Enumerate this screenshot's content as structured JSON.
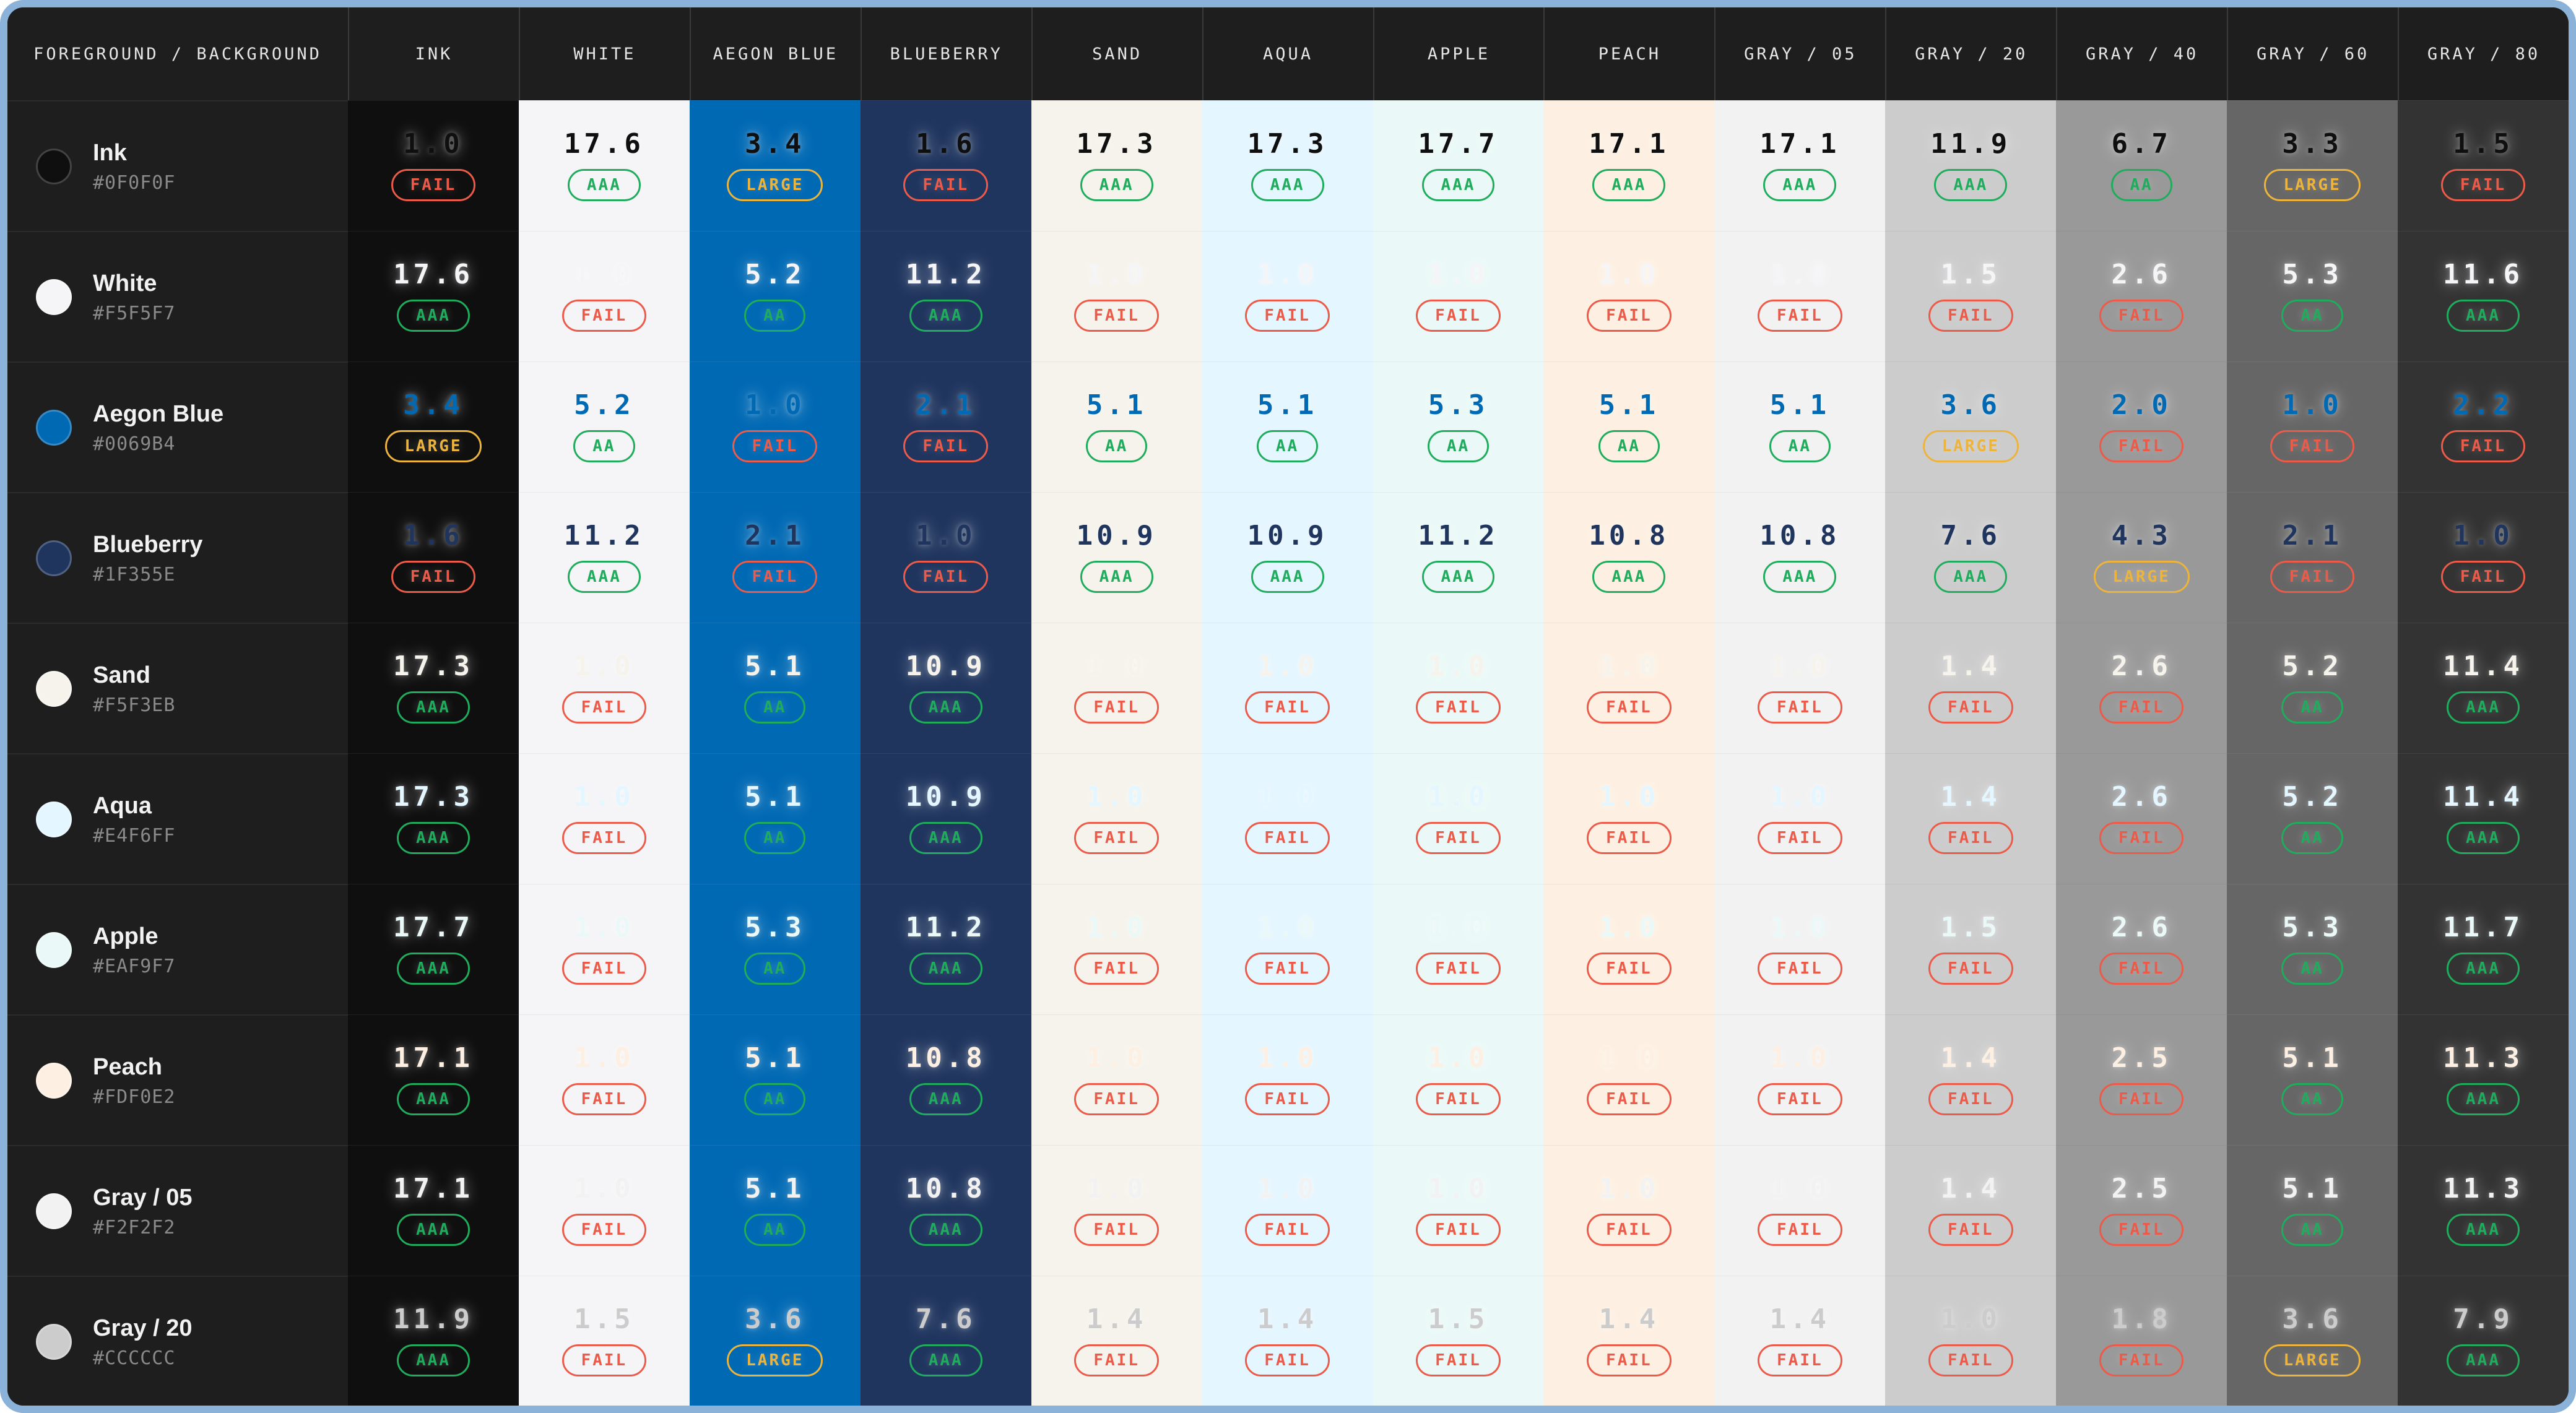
{
  "frame": {
    "border_color": "#8BB2D9",
    "page_background": "#FFFFFF",
    "table_background": "#1E1E1E",
    "header_background": "#1E1E1E",
    "header_text_color": "#E6E6E6",
    "header_divider_color": "#3A3A3A",
    "row_label_background": "#1E1E1E",
    "row_name_color": "#F2F2F2",
    "row_hex_color": "#8A8A8A"
  },
  "badge_colors": {
    "AAA": "#1FAC5C",
    "AA": "#1FAC5C",
    "LARGE": "#ECB43D",
    "FAIL": "#EC5B49"
  },
  "header": {
    "corner_label": "FOREGROUND / BACKGROUND",
    "columns": [
      {
        "key": "ink",
        "label": "INK",
        "bg": "#0F0F0F",
        "dark": true
      },
      {
        "key": "white",
        "label": "WHITE",
        "bg": "#F5F5F7",
        "dark": false
      },
      {
        "key": "aegonblue",
        "label": "AEGON BLUE",
        "bg": "#0069B4",
        "dark": true
      },
      {
        "key": "blueberry",
        "label": "BLUEBERRY",
        "bg": "#1F355E",
        "dark": true
      },
      {
        "key": "sand",
        "label": "SAND",
        "bg": "#F5F3EB",
        "dark": false
      },
      {
        "key": "aqua",
        "label": "AQUA",
        "bg": "#E4F6FF",
        "dark": false
      },
      {
        "key": "apple",
        "label": "APPLE",
        "bg": "#EAF9F7",
        "dark": false
      },
      {
        "key": "peach",
        "label": "PEACH",
        "bg": "#FDF0E2",
        "dark": false
      },
      {
        "key": "gray05",
        "label": "GRAY / 05",
        "bg": "#F2F2F2",
        "dark": false
      },
      {
        "key": "gray20",
        "label": "GRAY / 20",
        "bg": "#CCCCCC",
        "dark": false
      },
      {
        "key": "gray40",
        "label": "GRAY / 40",
        "bg": "#999999",
        "dark": false
      },
      {
        "key": "gray60",
        "label": "GRAY / 60",
        "bg": "#666666",
        "dark": true
      },
      {
        "key": "gray80",
        "label": "GRAY / 80",
        "bg": "#333333",
        "dark": true
      }
    ]
  },
  "rows": [
    {
      "key": "ink",
      "name": "Ink",
      "hex": "#0F0F0F",
      "cells": [
        {
          "ratio": "1.0",
          "grade": "FAIL"
        },
        {
          "ratio": "17.6",
          "grade": "AAA"
        },
        {
          "ratio": "3.4",
          "grade": "LARGE"
        },
        {
          "ratio": "1.6",
          "grade": "FAIL"
        },
        {
          "ratio": "17.3",
          "grade": "AAA"
        },
        {
          "ratio": "17.3",
          "grade": "AAA"
        },
        {
          "ratio": "17.7",
          "grade": "AAA"
        },
        {
          "ratio": "17.1",
          "grade": "AAA"
        },
        {
          "ratio": "17.1",
          "grade": "AAA"
        },
        {
          "ratio": "11.9",
          "grade": "AAA"
        },
        {
          "ratio": "6.7",
          "grade": "AA"
        },
        {
          "ratio": "3.3",
          "grade": "LARGE"
        },
        {
          "ratio": "1.5",
          "grade": "FAIL"
        }
      ]
    },
    {
      "key": "white",
      "name": "White",
      "hex": "#F5F5F7",
      "cells": [
        {
          "ratio": "17.6",
          "grade": "AAA"
        },
        {
          "ratio": "1.0",
          "grade": "FAIL"
        },
        {
          "ratio": "5.2",
          "grade": "AA"
        },
        {
          "ratio": "11.2",
          "grade": "AAA"
        },
        {
          "ratio": "1.0",
          "grade": "FAIL"
        },
        {
          "ratio": "1.0",
          "grade": "FAIL"
        },
        {
          "ratio": "1.0",
          "grade": "FAIL"
        },
        {
          "ratio": "1.0",
          "grade": "FAIL"
        },
        {
          "ratio": "1.0",
          "grade": "FAIL"
        },
        {
          "ratio": "1.5",
          "grade": "FAIL"
        },
        {
          "ratio": "2.6",
          "grade": "FAIL"
        },
        {
          "ratio": "5.3",
          "grade": "AA"
        },
        {
          "ratio": "11.6",
          "grade": "AAA"
        }
      ]
    },
    {
      "key": "aegonblue",
      "name": "Aegon Blue",
      "hex": "#0069B4",
      "cells": [
        {
          "ratio": "3.4",
          "grade": "LARGE"
        },
        {
          "ratio": "5.2",
          "grade": "AA"
        },
        {
          "ratio": "1.0",
          "grade": "FAIL"
        },
        {
          "ratio": "2.1",
          "grade": "FAIL"
        },
        {
          "ratio": "5.1",
          "grade": "AA"
        },
        {
          "ratio": "5.1",
          "grade": "AA"
        },
        {
          "ratio": "5.3",
          "grade": "AA"
        },
        {
          "ratio": "5.1",
          "grade": "AA"
        },
        {
          "ratio": "5.1",
          "grade": "AA"
        },
        {
          "ratio": "3.6",
          "grade": "LARGE"
        },
        {
          "ratio": "2.0",
          "grade": "FAIL"
        },
        {
          "ratio": "1.0",
          "grade": "FAIL"
        },
        {
          "ratio": "2.2",
          "grade": "FAIL"
        }
      ]
    },
    {
      "key": "blueberry",
      "name": "Blueberry",
      "hex": "#1F355E",
      "cells": [
        {
          "ratio": "1.6",
          "grade": "FAIL"
        },
        {
          "ratio": "11.2",
          "grade": "AAA"
        },
        {
          "ratio": "2.1",
          "grade": "FAIL"
        },
        {
          "ratio": "1.0",
          "grade": "FAIL"
        },
        {
          "ratio": "10.9",
          "grade": "AAA"
        },
        {
          "ratio": "10.9",
          "grade": "AAA"
        },
        {
          "ratio": "11.2",
          "grade": "AAA"
        },
        {
          "ratio": "10.8",
          "grade": "AAA"
        },
        {
          "ratio": "10.8",
          "grade": "AAA"
        },
        {
          "ratio": "7.6",
          "grade": "AAA"
        },
        {
          "ratio": "4.3",
          "grade": "LARGE"
        },
        {
          "ratio": "2.1",
          "grade": "FAIL"
        },
        {
          "ratio": "1.0",
          "grade": "FAIL"
        }
      ]
    },
    {
      "key": "sand",
      "name": "Sand",
      "hex": "#F5F3EB",
      "cells": [
        {
          "ratio": "17.3",
          "grade": "AAA"
        },
        {
          "ratio": "1.0",
          "grade": "FAIL"
        },
        {
          "ratio": "5.1",
          "grade": "AA"
        },
        {
          "ratio": "10.9",
          "grade": "AAA"
        },
        {
          "ratio": "1.0",
          "grade": "FAIL"
        },
        {
          "ratio": "1.0",
          "grade": "FAIL"
        },
        {
          "ratio": "1.0",
          "grade": "FAIL"
        },
        {
          "ratio": "1.0",
          "grade": "FAIL"
        },
        {
          "ratio": "1.0",
          "grade": "FAIL"
        },
        {
          "ratio": "1.4",
          "grade": "FAIL"
        },
        {
          "ratio": "2.6",
          "grade": "FAIL"
        },
        {
          "ratio": "5.2",
          "grade": "AA"
        },
        {
          "ratio": "11.4",
          "grade": "AAA"
        }
      ]
    },
    {
      "key": "aqua",
      "name": "Aqua",
      "hex": "#E4F6FF",
      "cells": [
        {
          "ratio": "17.3",
          "grade": "AAA"
        },
        {
          "ratio": "1.0",
          "grade": "FAIL"
        },
        {
          "ratio": "5.1",
          "grade": "AA"
        },
        {
          "ratio": "10.9",
          "grade": "AAA"
        },
        {
          "ratio": "1.0",
          "grade": "FAIL"
        },
        {
          "ratio": "1.0",
          "grade": "FAIL"
        },
        {
          "ratio": "1.0",
          "grade": "FAIL"
        },
        {
          "ratio": "1.0",
          "grade": "FAIL"
        },
        {
          "ratio": "1.0",
          "grade": "FAIL"
        },
        {
          "ratio": "1.4",
          "grade": "FAIL"
        },
        {
          "ratio": "2.6",
          "grade": "FAIL"
        },
        {
          "ratio": "5.2",
          "grade": "AA"
        },
        {
          "ratio": "11.4",
          "grade": "AAA"
        }
      ]
    },
    {
      "key": "apple",
      "name": "Apple",
      "hex": "#EAF9F7",
      "cells": [
        {
          "ratio": "17.7",
          "grade": "AAA"
        },
        {
          "ratio": "1.0",
          "grade": "FAIL"
        },
        {
          "ratio": "5.3",
          "grade": "AA"
        },
        {
          "ratio": "11.2",
          "grade": "AAA"
        },
        {
          "ratio": "1.0",
          "grade": "FAIL"
        },
        {
          "ratio": "1.0",
          "grade": "FAIL"
        },
        {
          "ratio": "1.0",
          "grade": "FAIL"
        },
        {
          "ratio": "1.0",
          "grade": "FAIL"
        },
        {
          "ratio": "1.0",
          "grade": "FAIL"
        },
        {
          "ratio": "1.5",
          "grade": "FAIL"
        },
        {
          "ratio": "2.6",
          "grade": "FAIL"
        },
        {
          "ratio": "5.3",
          "grade": "AA"
        },
        {
          "ratio": "11.7",
          "grade": "AAA"
        }
      ]
    },
    {
      "key": "peach",
      "name": "Peach",
      "hex": "#FDF0E2",
      "cells": [
        {
          "ratio": "17.1",
          "grade": "AAA"
        },
        {
          "ratio": "1.0",
          "grade": "FAIL"
        },
        {
          "ratio": "5.1",
          "grade": "AA"
        },
        {
          "ratio": "10.8",
          "grade": "AAA"
        },
        {
          "ratio": "1.0",
          "grade": "FAIL"
        },
        {
          "ratio": "1.0",
          "grade": "FAIL"
        },
        {
          "ratio": "1.0",
          "grade": "FAIL"
        },
        {
          "ratio": "1.0",
          "grade": "FAIL"
        },
        {
          "ratio": "1.0",
          "grade": "FAIL"
        },
        {
          "ratio": "1.4",
          "grade": "FAIL"
        },
        {
          "ratio": "2.5",
          "grade": "FAIL"
        },
        {
          "ratio": "5.1",
          "grade": "AA"
        },
        {
          "ratio": "11.3",
          "grade": "AAA"
        }
      ]
    },
    {
      "key": "gray05",
      "name": "Gray / 05",
      "hex": "#F2F2F2",
      "cells": [
        {
          "ratio": "17.1",
          "grade": "AAA"
        },
        {
          "ratio": "1.0",
          "grade": "FAIL"
        },
        {
          "ratio": "5.1",
          "grade": "AA"
        },
        {
          "ratio": "10.8",
          "grade": "AAA"
        },
        {
          "ratio": "1.0",
          "grade": "FAIL"
        },
        {
          "ratio": "1.0",
          "grade": "FAIL"
        },
        {
          "ratio": "1.0",
          "grade": "FAIL"
        },
        {
          "ratio": "1.0",
          "grade": "FAIL"
        },
        {
          "ratio": "1.0",
          "grade": "FAIL"
        },
        {
          "ratio": "1.4",
          "grade": "FAIL"
        },
        {
          "ratio": "2.5",
          "grade": "FAIL"
        },
        {
          "ratio": "5.1",
          "grade": "AA"
        },
        {
          "ratio": "11.3",
          "grade": "AAA"
        }
      ]
    },
    {
      "key": "gray20",
      "name": "Gray / 20",
      "hex": "#CCCCCC",
      "cells": [
        {
          "ratio": "11.9",
          "grade": "AAA"
        },
        {
          "ratio": "1.5",
          "grade": "FAIL"
        },
        {
          "ratio": "3.6",
          "grade": "LARGE"
        },
        {
          "ratio": "7.6",
          "grade": "AAA"
        },
        {
          "ratio": "1.4",
          "grade": "FAIL"
        },
        {
          "ratio": "1.4",
          "grade": "FAIL"
        },
        {
          "ratio": "1.5",
          "grade": "FAIL"
        },
        {
          "ratio": "1.4",
          "grade": "FAIL"
        },
        {
          "ratio": "1.4",
          "grade": "FAIL"
        },
        {
          "ratio": "1.0",
          "grade": "FAIL"
        },
        {
          "ratio": "1.8",
          "grade": "FAIL"
        },
        {
          "ratio": "3.6",
          "grade": "LARGE"
        },
        {
          "ratio": "7.9",
          "grade": "AAA"
        }
      ]
    }
  ]
}
